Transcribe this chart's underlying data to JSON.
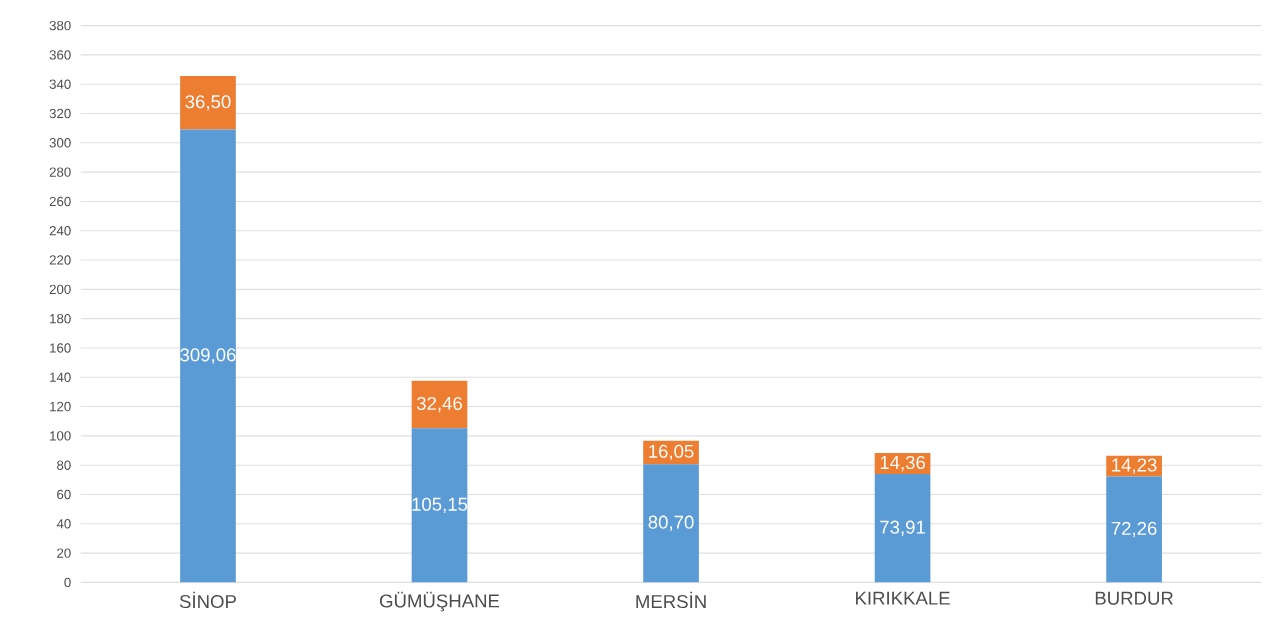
{
  "chart_data": {
    "type": "bar",
    "stacked": true,
    "categories": [
      "SİNOP",
      "GÜMÜŞHANE",
      "MERSİN",
      "KIRIKKALE",
      "BURDUR"
    ],
    "series": [
      {
        "color": "#5b9bd5",
        "values": [
          309.06,
          105.15,
          80.7,
          73.91,
          72.26
        ],
        "value_labels": [
          "309,06",
          "105,15",
          "80,70",
          "73,91",
          "72,26"
        ]
      },
      {
        "color": "#ed7d31",
        "values": [
          36.5,
          32.46,
          16.05,
          14.36,
          14.23
        ],
        "value_labels": [
          "36,50",
          "32,46",
          "16,05",
          "14,36",
          "14,23"
        ]
      }
    ],
    "ylim": [
      0,
      380
    ],
    "yticks": [
      0,
      20,
      40,
      60,
      80,
      100,
      120,
      140,
      160,
      180,
      200,
      220,
      240,
      260,
      280,
      300,
      320,
      340,
      360,
      380
    ],
    "grid": "y"
  }
}
